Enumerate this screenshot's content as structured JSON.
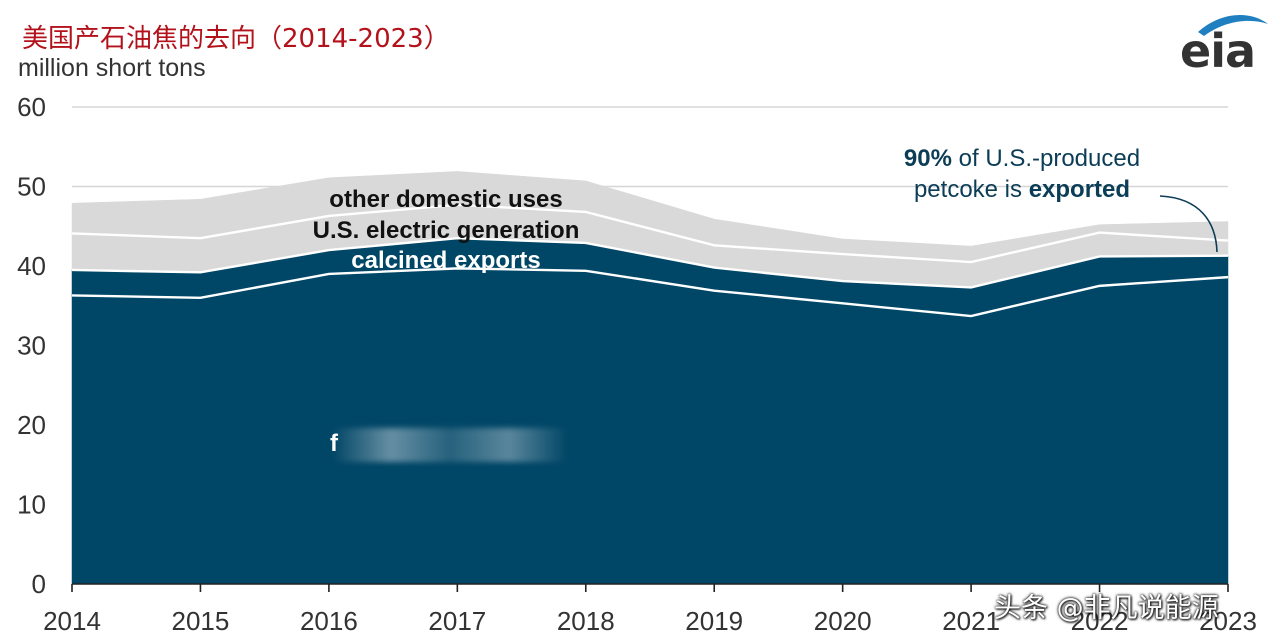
{
  "title": "美国产石油焦的去向（2014-2023）",
  "units": "million short tons",
  "logo": "eia",
  "watermark": "头条 @非凡说能源",
  "obscured_label_fragment": "f",
  "colors": {
    "fuel": "#004666",
    "calcined": "#004666",
    "electric": "#d9d9d9",
    "other": "#d9d9d9",
    "separator": "#ffffff",
    "annotation": "#0c3d57",
    "grid": "#d6d6d6",
    "title": "#b3121b"
  },
  "chart_data": {
    "type": "area",
    "stacked": true,
    "x": [
      2014,
      2015,
      2016,
      2017,
      2018,
      2019,
      2020,
      2021,
      2022,
      2023
    ],
    "ylim": [
      0,
      60
    ],
    "yticks": [
      0,
      10,
      20,
      30,
      40,
      50,
      60
    ],
    "ylabel": "million short tons",
    "series": [
      {
        "key": "fuel",
        "name": "fuel-grade exports",
        "values": [
          36.3,
          36.0,
          39.0,
          39.7,
          39.4,
          36.9,
          35.3,
          33.7,
          37.5,
          38.6
        ]
      },
      {
        "key": "calcined",
        "name": "calcined exports",
        "values": [
          3.2,
          3.2,
          3.0,
          3.8,
          3.5,
          2.9,
          2.8,
          3.6,
          3.7,
          2.7
        ]
      },
      {
        "key": "electric",
        "name": "U.S. electric generation",
        "values": [
          4.6,
          4.3,
          4.3,
          4.2,
          3.9,
          2.8,
          3.4,
          3.2,
          3.0,
          1.9
        ]
      },
      {
        "key": "other",
        "name": "other domestic uses",
        "values": [
          3.8,
          4.9,
          4.8,
          4.2,
          3.9,
          3.3,
          1.9,
          2.0,
          1.0,
          2.4
        ]
      }
    ],
    "labels": {
      "other": "other domestic uses",
      "electric": "U.S. electric generation",
      "calcined": "calcined exports"
    },
    "annotation": {
      "bold_pct": "90%",
      "line1_rest": " of U.S.-produced",
      "line2_start": "petcoke is ",
      "bold_word": "exported"
    }
  }
}
